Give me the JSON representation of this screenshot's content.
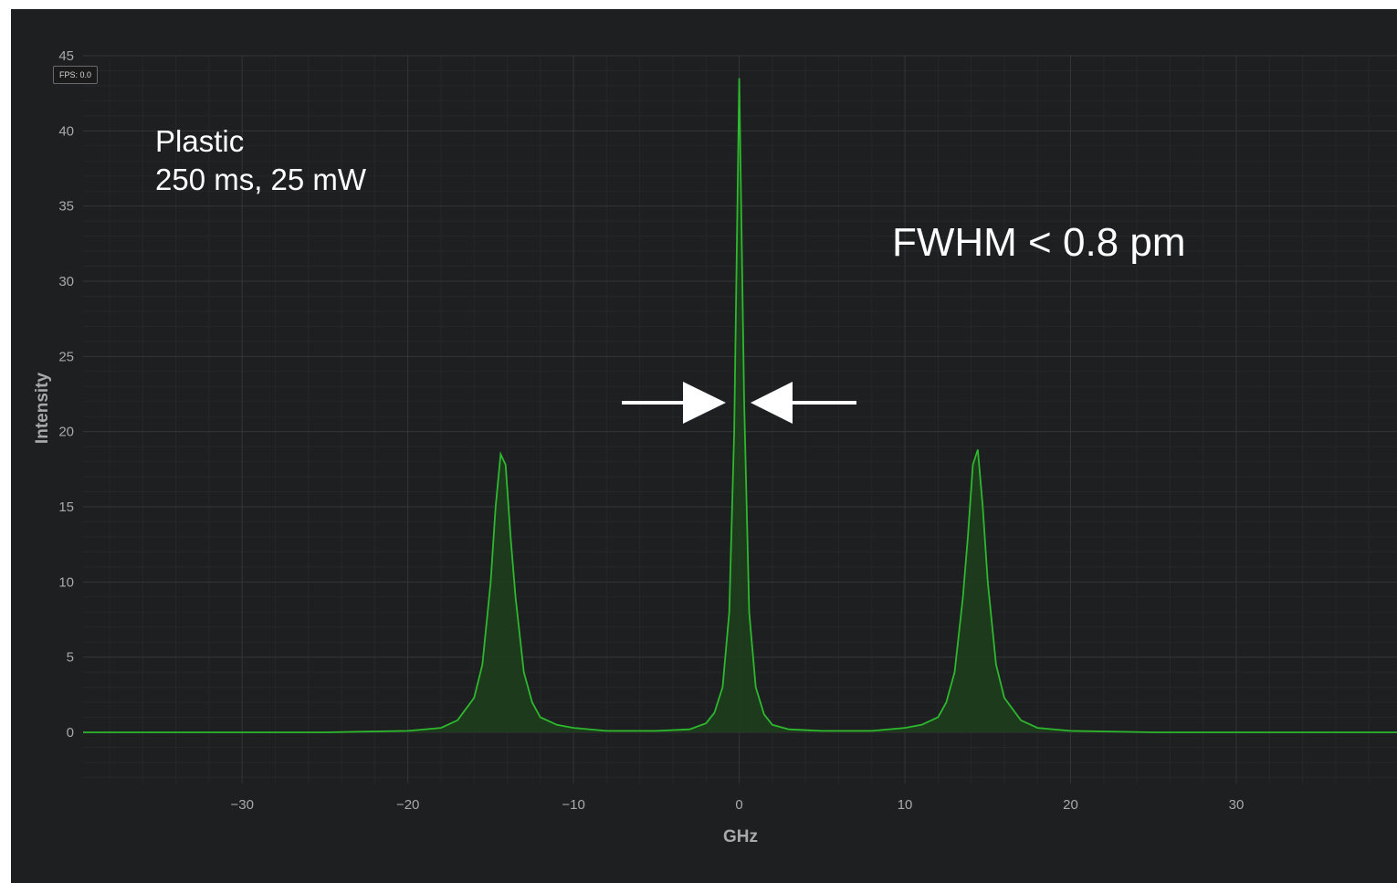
{
  "fps_badge": "FPS: 0.0",
  "annotations": {
    "sample": "Plastic",
    "settings": "250 ms, 25 mW",
    "fwhm": "FWHM < 0.8 pm"
  },
  "colors": {
    "background": "#1e1f21",
    "trace": "#2db82d",
    "fill": "#1d3d1d",
    "grid_major": "#34353a",
    "grid_minor": "#26272a",
    "text": "#a9a9a9",
    "arrow": "#ffffff"
  },
  "chart_data": {
    "type": "line",
    "title": "",
    "xlabel": "GHz",
    "ylabel": "Intensity",
    "xlim": [
      -39.6,
      39.7
    ],
    "ylim": [
      -3.4,
      45
    ],
    "x_ticks": [
      -30,
      -20,
      -10,
      0,
      10,
      20,
      30
    ],
    "y_ticks": [
      0,
      5,
      10,
      15,
      20,
      25,
      30,
      35,
      40,
      45
    ],
    "grid": true,
    "filled": true,
    "series": [
      {
        "x": [
          -39.6,
          -30,
          -25,
          -20,
          -18,
          -17,
          -16,
          -15.5,
          -15,
          -14.7,
          -14.4,
          -14.1,
          -13.8,
          -13.5,
          -13,
          -12.5,
          -12,
          -11,
          -10,
          -8,
          -5,
          -3,
          -2,
          -1.5,
          -1,
          -0.6,
          -0.3,
          0,
          0.3,
          0.6,
          1,
          1.5,
          2,
          3,
          5,
          8,
          10,
          11,
          12,
          12.5,
          13,
          13.5,
          13.8,
          14.1,
          14.4,
          14.7,
          15,
          15.5,
          16,
          17,
          18,
          20,
          25,
          30,
          35,
          39.7
        ],
        "y": [
          0,
          0,
          0,
          0.1,
          0.3,
          0.8,
          2.3,
          4.5,
          10,
          15,
          18.5,
          17.8,
          13,
          9,
          4,
          2,
          1,
          0.5,
          0.3,
          0.1,
          0.1,
          0.2,
          0.6,
          1.3,
          3,
          8,
          20,
          43.5,
          22,
          8,
          3,
          1.2,
          0.5,
          0.2,
          0.1,
          0.1,
          0.3,
          0.5,
          1,
          2,
          4,
          9,
          13,
          17.8,
          18.8,
          15,
          10,
          4.5,
          2.3,
          0.8,
          0.3,
          0.1,
          0,
          0,
          0,
          0
        ]
      }
    ]
  }
}
